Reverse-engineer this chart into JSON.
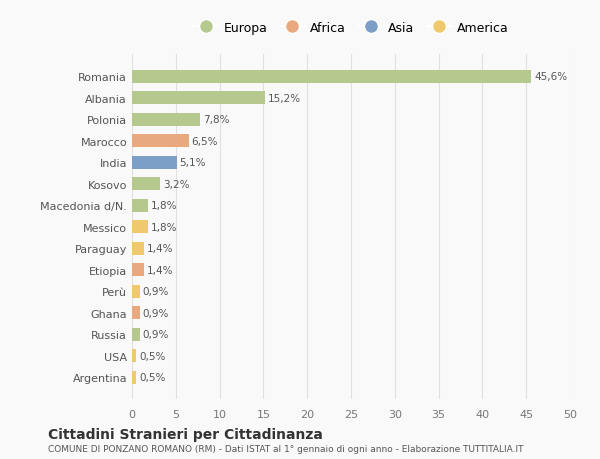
{
  "categories": [
    "Romania",
    "Albania",
    "Polonia",
    "Marocco",
    "India",
    "Kosovo",
    "Macedonia d/N.",
    "Messico",
    "Paraguay",
    "Etiopia",
    "Perù",
    "Ghana",
    "Russia",
    "USA",
    "Argentina"
  ],
  "values": [
    45.6,
    15.2,
    7.8,
    6.5,
    5.1,
    3.2,
    1.8,
    1.8,
    1.4,
    1.4,
    0.9,
    0.9,
    0.9,
    0.5,
    0.5
  ],
  "labels": [
    "45,6%",
    "15,2%",
    "7,8%",
    "6,5%",
    "5,1%",
    "3,2%",
    "1,8%",
    "1,8%",
    "1,4%",
    "1,4%",
    "0,9%",
    "0,9%",
    "0,9%",
    "0,5%",
    "0,5%"
  ],
  "colors": [
    "#b5c98e",
    "#b5c98e",
    "#b5c98e",
    "#e8a97e",
    "#7b9fc7",
    "#b5c98e",
    "#b5c98e",
    "#f0c96e",
    "#f0c96e",
    "#e8a97e",
    "#f0c96e",
    "#e8a97e",
    "#b5c98e",
    "#f0c96e",
    "#f0c96e"
  ],
  "legend": [
    {
      "label": "Europa",
      "color": "#b5c98e"
    },
    {
      "label": "Africa",
      "color": "#e8a97e"
    },
    {
      "label": "Asia",
      "color": "#7b9fc7"
    },
    {
      "label": "America",
      "color": "#f0c96e"
    }
  ],
  "title": "Cittadini Stranieri per Cittadinanza",
  "subtitle": "COMUNE DI PONZANO ROMANO (RM) - Dati ISTAT al 1° gennaio di ogni anno - Elaborazione TUTTITALIA.IT",
  "xlim": [
    0,
    50
  ],
  "xticks": [
    0,
    5,
    10,
    15,
    20,
    25,
    30,
    35,
    40,
    45,
    50
  ],
  "background_color": "#f9f9f9",
  "grid_color": "#e0e0e0"
}
